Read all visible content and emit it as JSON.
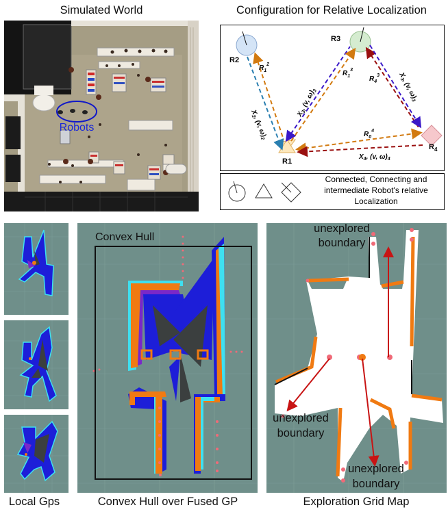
{
  "titles": {
    "simulated_world": "Simulated World",
    "configuration": "Configuration for Relative Localization",
    "local_gps": "Local Gps",
    "convex_hull_over_fused": "Convex Hull over Fused GP",
    "exploration_grid_map": "Exploration Grid Map"
  },
  "world": {
    "robots_label": "Robots"
  },
  "config": {
    "robots": {
      "r1": "R1",
      "r2": "R2",
      "r3": "R3",
      "r4_main": "R",
      "r4_sub": "4"
    },
    "edge_labels": {
      "x2_main": "X",
      "x2_sub": "2",
      "x2_rest": ", (v, ω)",
      "x2_sub2": "2",
      "x3a_main": "X",
      "x3a_sub": "3",
      "x3a_rest": ", (v, ω)",
      "x3a_sub2": "3",
      "x3b_main": "X",
      "x3b_sub": "3",
      "x3b_rest": ", (v, ω)",
      "x3b_sub2": "3",
      "x4_main": "X",
      "x4_sub": "4",
      "x4_rest": ", (v, ω)",
      "x4_sub2": "4",
      "r12_main": "R",
      "r12_sub": "1",
      "r12_sup": "2",
      "r13_main": "R",
      "r13_sub": "1",
      "r13_sup": "3",
      "r43_main": "R",
      "r43_sub": "4",
      "r43_sup": "3",
      "r04_main": "R",
      "r04_sub": "0",
      "r04_sup": "4"
    },
    "legend_text_lines": [
      "Connected, Connecting and",
      "intermediate Robot's relative",
      "Localization"
    ]
  },
  "hull": {
    "label": "Convex Hull"
  },
  "exploration": {
    "labels": [
      [
        "unexplored",
        "boundary"
      ],
      [
        "unexplored",
        "boundary"
      ],
      [
        "unexplored",
        "boundary"
      ]
    ]
  },
  "colors": {
    "map_bg": "#6f8f8a",
    "free": "#ffffff",
    "frontier": "#f07a12",
    "frontier_pink": "#f06a78",
    "gp_blue": "#1d1ed8",
    "gp_purple": "#7a28c8",
    "gp_cyan": "#3ee0f0",
    "obstacle_dark": "#3b3f3f",
    "teal_arrow": "#2a7fb0",
    "orange_arrow": "#d27a10",
    "purple_arrow": "#3a18c8",
    "red_arrow": "#9a1010",
    "arrow_red_explore": "#c81414"
  }
}
